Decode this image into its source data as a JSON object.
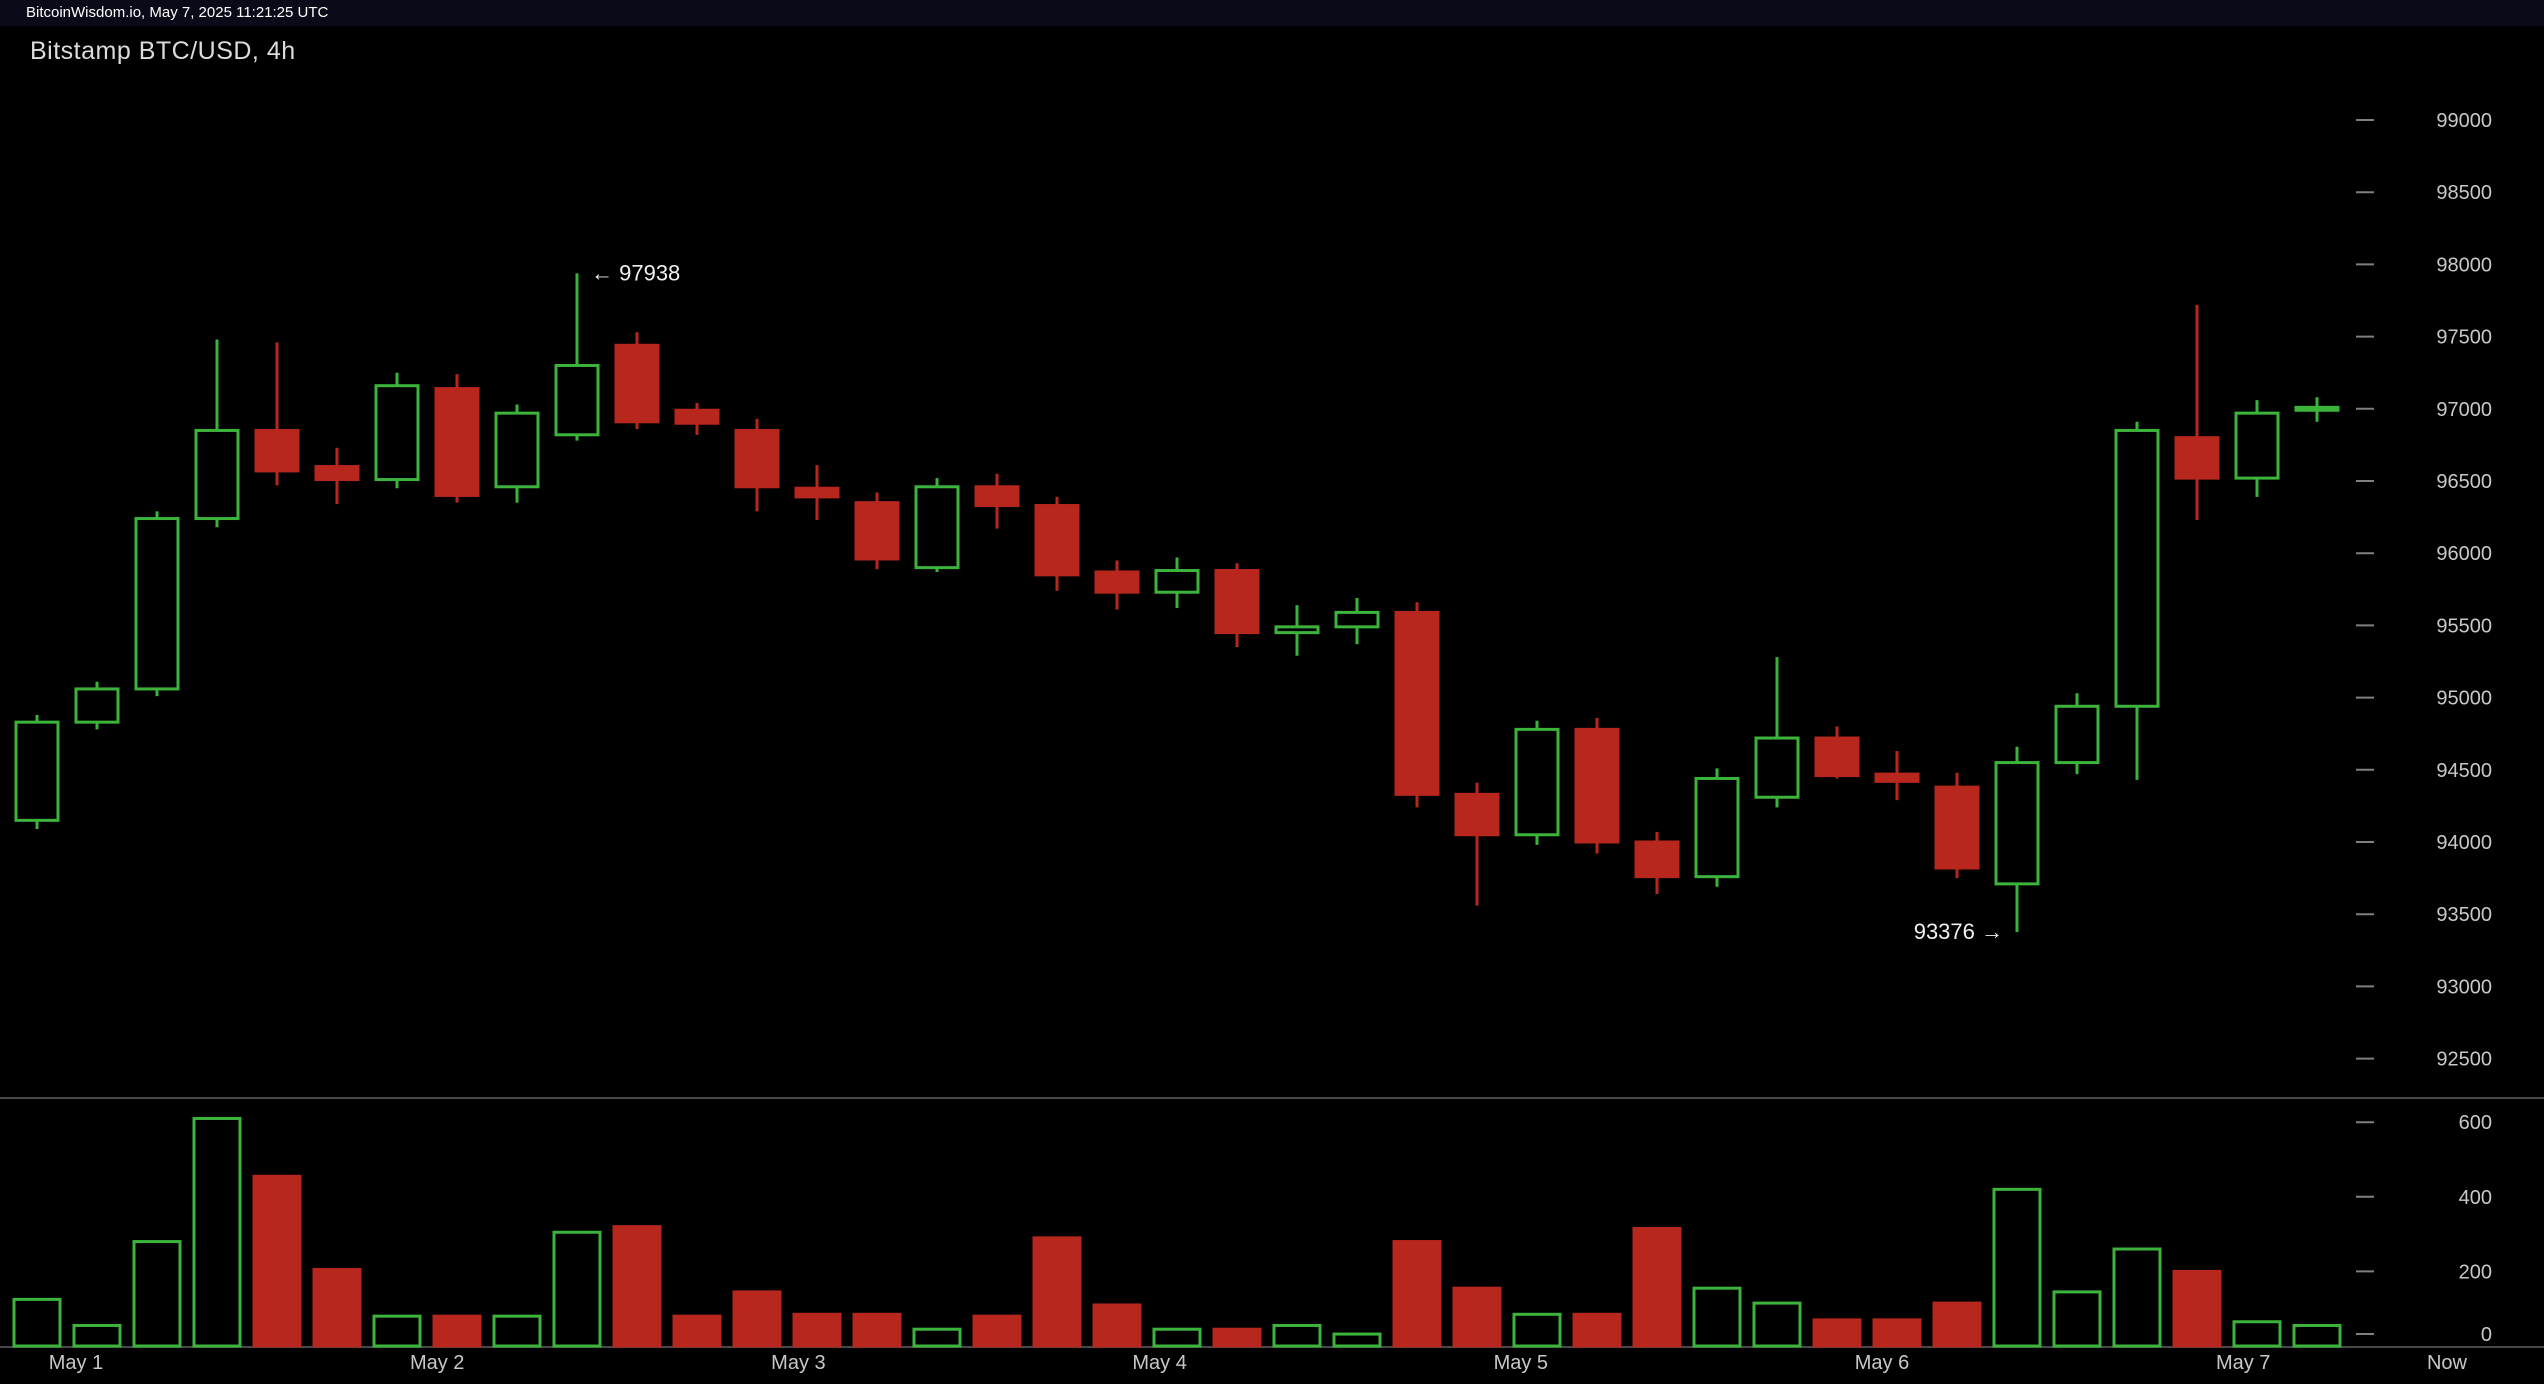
{
  "topbar": {
    "clock_text": "BitcoinWisdom.io, May 7, 2025 11:21:25 UTC"
  },
  "header": {
    "title": "Bitstamp BTC/USD, 4h"
  },
  "colors": {
    "up": "#3cb43c",
    "down": "#b8271d",
    "background": "#000000",
    "axis_text": "#c8c8c8",
    "tick_dash": "#808080",
    "separator": "#484848",
    "annotation_text": "#f0f0f0"
  },
  "chart_data": {
    "type": "candlestick",
    "title": "Bitstamp BTC/USD, 4h",
    "exchange": "Bitstamp",
    "pair": "BTC/USD",
    "interval": "4h",
    "price_axis": {
      "min": 92500,
      "max": 99000,
      "tick_step": 500,
      "tick_labels": [
        "99000",
        "98500",
        "98000",
        "97500",
        "97000",
        "96500",
        "96000",
        "95500",
        "95000",
        "94500",
        "94000",
        "93500",
        "93000",
        "92500"
      ]
    },
    "volume_axis": {
      "tick_labels": [
        "600",
        "400",
        "200",
        "0"
      ],
      "tick_values": [
        600,
        400,
        200,
        0
      ]
    },
    "x_axis": {
      "date_labels": [
        "May 1",
        "May 2",
        "May 3",
        "May 4",
        "May 5",
        "May 6",
        "May 7"
      ],
      "now_label": "Now"
    },
    "annotations": [
      {
        "text": "← 97938",
        "value": 97938,
        "candle_index": 9,
        "arrow": "left"
      },
      {
        "text": "93376 →",
        "value": 93376,
        "candle_index": 33,
        "arrow": "right"
      }
    ],
    "candles_columns": [
      "open",
      "high",
      "low",
      "close",
      "volume"
    ],
    "candles": [
      [
        94150,
        94880,
        94090,
        94830,
        125
      ],
      [
        94830,
        95110,
        94780,
        95060,
        55
      ],
      [
        95060,
        96290,
        95010,
        96240,
        280
      ],
      [
        96240,
        97480,
        96180,
        96850,
        610
      ],
      [
        96850,
        97460,
        96470,
        96570,
        455
      ],
      [
        96600,
        96730,
        96340,
        96510,
        205
      ],
      [
        96510,
        97250,
        96450,
        97160,
        80
      ],
      [
        97140,
        97240,
        96350,
        96400,
        80
      ],
      [
        96460,
        97030,
        96350,
        96970,
        80
      ],
      [
        96820,
        97938,
        96780,
        97300,
        305
      ],
      [
        97440,
        97530,
        96860,
        96910,
        320
      ],
      [
        96990,
        97040,
        96820,
        96900,
        80
      ],
      [
        96850,
        96930,
        96290,
        96460,
        145
      ],
      [
        96450,
        96610,
        96230,
        96390,
        85
      ],
      [
        96350,
        96420,
        95890,
        95960,
        85
      ],
      [
        95900,
        96520,
        95870,
        96460,
        45
      ],
      [
        96460,
        96550,
        96170,
        96330,
        80
      ],
      [
        96330,
        96390,
        95740,
        95850,
        290
      ],
      [
        95870,
        95950,
        95610,
        95730,
        110
      ],
      [
        95730,
        95970,
        95620,
        95880,
        45
      ],
      [
        95880,
        95930,
        95350,
        95450,
        45
      ],
      [
        95450,
        95640,
        95290,
        95490,
        55
      ],
      [
        95490,
        95690,
        95370,
        95590,
        32
      ],
      [
        95590,
        95660,
        94240,
        94330,
        280
      ],
      [
        94330,
        94410,
        93560,
        94050,
        155
      ],
      [
        94050,
        94840,
        93980,
        94780,
        85
      ],
      [
        94780,
        94860,
        93920,
        94000,
        85
      ],
      [
        94000,
        94070,
        93640,
        93760,
        315
      ],
      [
        93760,
        94510,
        93690,
        94440,
        155
      ],
      [
        94310,
        95280,
        94240,
        94720,
        115
      ],
      [
        94720,
        94800,
        94440,
        94460,
        70
      ],
      [
        94470,
        94630,
        94290,
        94420,
        70
      ],
      [
        94380,
        94480,
        93750,
        93820,
        115
      ],
      [
        93710,
        94660,
        93376,
        94550,
        420
      ],
      [
        94550,
        95030,
        94470,
        94940,
        145
      ],
      [
        94940,
        96910,
        94430,
        96850,
        260
      ],
      [
        96800,
        97720,
        96230,
        96520,
        200
      ],
      [
        96520,
        97060,
        96390,
        96970,
        65
      ],
      [
        96990,
        97080,
        96910,
        97010,
        55
      ]
    ]
  }
}
